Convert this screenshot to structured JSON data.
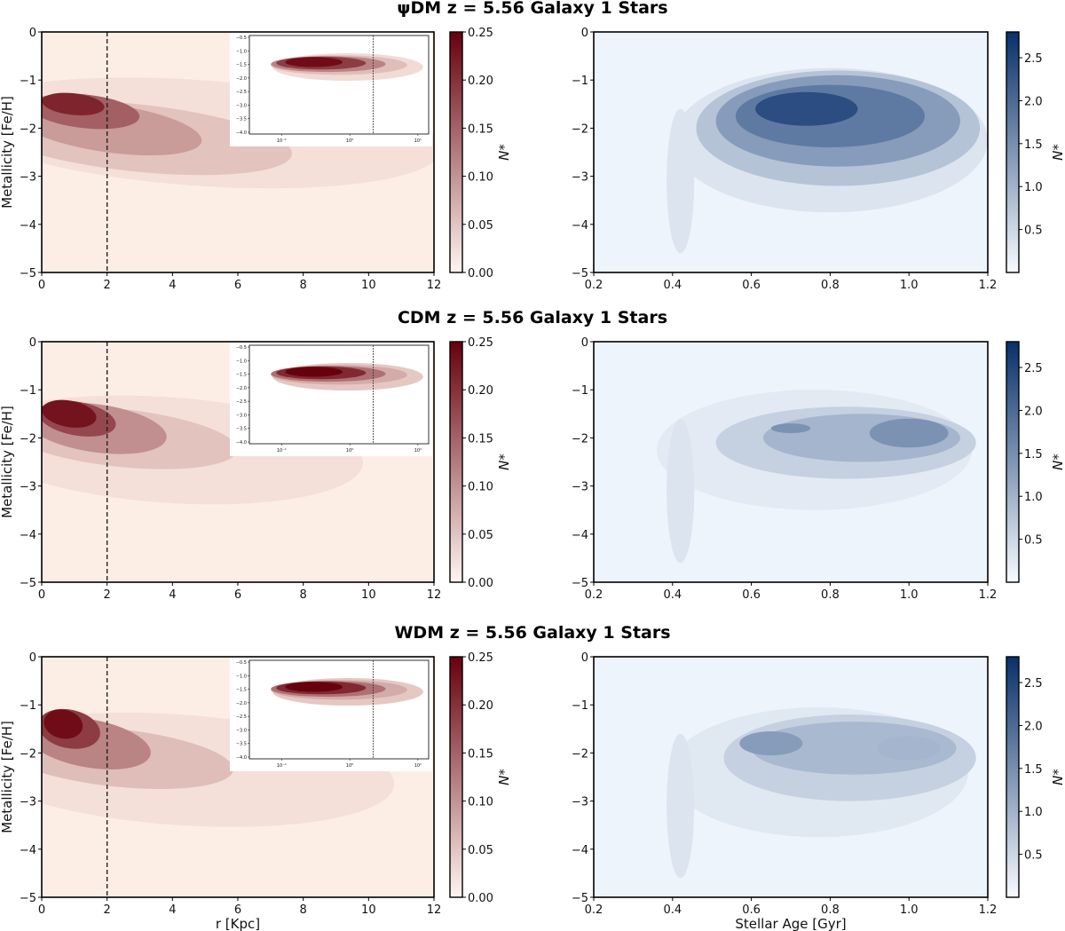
{
  "figure": {
    "ylabel": "Metallicity [Fe/H]",
    "xlabel_left": "r [Kpc]",
    "xlabel_right": "Stellar Age [Gyr]",
    "colorbar_label": "N*",
    "colors": {
      "red_low": "#fdeee5",
      "red_high": "#67000d",
      "blue_low": "#eef4fb",
      "blue_high": "#08306b",
      "vline": "#222222"
    }
  },
  "chart_data": [
    {
      "type": "heatmap",
      "panel": "psiDM-metallicity-radius",
      "title": "ψDM z = 5.56 Galaxy 1 Stars",
      "xlabel": "",
      "ylabel": "Metallicity [Fe/H]",
      "xlim": [
        0,
        12
      ],
      "ylim": [
        -5,
        0
      ],
      "xticks": [
        "0",
        "2",
        "4",
        "6",
        "8",
        "10",
        "12"
      ],
      "yticks": [
        "0",
        "−1",
        "−2",
        "−3",
        "−4",
        "−5"
      ],
      "vline_x": 2,
      "colorbar": {
        "cmap": "Reds",
        "range": [
          0,
          0.25
        ],
        "ticks": [
          "0.25",
          "0.20",
          "0.15",
          "0.10",
          "0.05",
          "0.00"
        ],
        "label": "N*"
      },
      "peak": {
        "r": 0.8,
        "feh": -1.55
      },
      "inset": {
        "xscale": "log",
        "xticks": [
          "10⁻¹",
          "10⁰",
          "10¹"
        ],
        "yticks": [
          "−0.5",
          "−1.0",
          "−1.5",
          "−2.0",
          "−2.5",
          "−3.0",
          "−3.5",
          "−4.0"
        ],
        "ylim": [
          -4,
          -0.5
        ],
        "vline_x": 2
      }
    },
    {
      "type": "heatmap",
      "panel": "psiDM-metallicity-age",
      "title": "",
      "xlabel": "",
      "ylabel": "",
      "xlim": [
        0.2,
        1.2
      ],
      "ylim": [
        -5,
        0
      ],
      "xticks": [
        "0.2",
        "0.4",
        "0.6",
        "0.8",
        "1.0",
        "1.2"
      ],
      "yticks": [
        "0",
        "−1",
        "−2",
        "−3",
        "−4",
        "−5"
      ],
      "colorbar": {
        "cmap": "Blues",
        "range": [
          0,
          2.8
        ],
        "ticks": [
          "2.5",
          "2.0",
          "1.5",
          "1.0",
          "0.5"
        ],
        "label": "N*"
      },
      "peak": {
        "age": 0.7,
        "feh": -1.7
      }
    },
    {
      "type": "heatmap",
      "panel": "CDM-metallicity-radius",
      "title": "CDM z = 5.56 Galaxy 1 Stars",
      "xlabel": "",
      "ylabel": "Metallicity [Fe/H]",
      "xlim": [
        0,
        12
      ],
      "ylim": [
        -5,
        0
      ],
      "xticks": [
        "0",
        "2",
        "4",
        "6",
        "8",
        "10",
        "12"
      ],
      "yticks": [
        "0",
        "−1",
        "−2",
        "−3",
        "−4",
        "−5"
      ],
      "vline_x": 2,
      "colorbar": {
        "cmap": "Reds",
        "range": [
          0,
          0.25
        ],
        "ticks": [
          "0.25",
          "0.20",
          "0.15",
          "0.10",
          "0.05",
          "0.00"
        ],
        "label": "N*"
      },
      "peak": {
        "r": 0.7,
        "feh": -1.5
      },
      "inset": {
        "xscale": "log",
        "xticks": [
          "10⁻¹",
          "10⁰",
          "10¹"
        ],
        "yticks": [
          "−0.5",
          "−1.0",
          "−1.5",
          "−2.0",
          "−2.5",
          "−3.0",
          "−3.5",
          "−4.0"
        ],
        "ylim": [
          -4,
          -0.5
        ],
        "vline_x": 2
      }
    },
    {
      "type": "heatmap",
      "panel": "CDM-metallicity-age",
      "title": "",
      "xlabel": "",
      "ylabel": "",
      "xlim": [
        0.2,
        1.2
      ],
      "ylim": [
        -5,
        0
      ],
      "xticks": [
        "0.2",
        "0.4",
        "0.6",
        "0.8",
        "1.0",
        "1.2"
      ],
      "yticks": [
        "0",
        "−1",
        "−2",
        "−3",
        "−4",
        "−5"
      ],
      "colorbar": {
        "cmap": "Blues",
        "range": [
          0,
          2.8
        ],
        "ticks": [
          "2.5",
          "2.0",
          "1.5",
          "1.0",
          "0.5"
        ],
        "label": "N*"
      },
      "peak": {
        "age": 0.96,
        "feh": -1.6
      }
    },
    {
      "type": "heatmap",
      "panel": "WDM-metallicity-radius",
      "title": "WDM z = 5.56 Galaxy 1 Stars",
      "xlabel": "r [Kpc]",
      "ylabel": "Metallicity [Fe/H]",
      "xlim": [
        0,
        12
      ],
      "ylim": [
        -5,
        0
      ],
      "xticks": [
        "0",
        "2",
        "4",
        "6",
        "8",
        "10",
        "12"
      ],
      "yticks": [
        "0",
        "−1",
        "−2",
        "−3",
        "−4",
        "−5"
      ],
      "vline_x": 2,
      "colorbar": {
        "cmap": "Reds",
        "range": [
          0,
          0.25
        ],
        "ticks": [
          "0.25",
          "0.20",
          "0.15",
          "0.10",
          "0.05",
          "0.00"
        ],
        "label": "N*"
      },
      "peak": {
        "r": 0.6,
        "feh": -1.45
      },
      "inset": {
        "xscale": "log",
        "xticks": [
          "10⁻¹",
          "10⁰",
          "10¹"
        ],
        "yticks": [
          "−0.5",
          "−1.0",
          "−1.5",
          "−2.0",
          "−2.5",
          "−3.0",
          "−3.5",
          "−4.0"
        ],
        "ylim": [
          -4,
          -0.5
        ],
        "vline_x": 2
      }
    },
    {
      "type": "heatmap",
      "panel": "WDM-metallicity-age",
      "title": "",
      "xlabel": "Stellar Age [Gyr]",
      "ylabel": "",
      "xlim": [
        0.2,
        1.2
      ],
      "ylim": [
        -5,
        0
      ],
      "xticks": [
        "0.2",
        "0.4",
        "0.6",
        "0.8",
        "1.0",
        "1.2"
      ],
      "yticks": [
        "0",
        "−1",
        "−2",
        "−3",
        "−4",
        "−5"
      ],
      "colorbar": {
        "cmap": "Blues",
        "range": [
          0,
          2.8
        ],
        "ticks": [
          "2.5",
          "2.0",
          "1.5",
          "1.0",
          "0.5"
        ],
        "label": "N*"
      },
      "peak": {
        "age": 0.68,
        "feh": -1.7
      }
    }
  ]
}
